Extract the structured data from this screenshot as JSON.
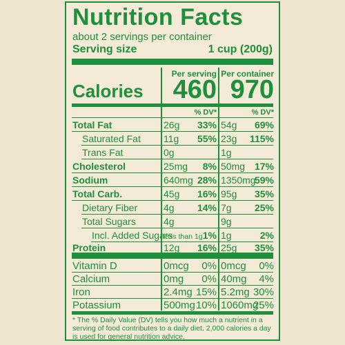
{
  "title": "Nutrition Facts",
  "servings_per_container": "about 2 servings per container",
  "serving_size_label": "Serving size",
  "serving_size_value": "1 cup (200g)",
  "col_per_serving": "Per serving",
  "col_per_container": "Per container",
  "calories_label": "Calories",
  "calories_serving": "460",
  "calories_container": "970",
  "dv_header": "% DV*",
  "nutrients": [
    {
      "name": "Total Fat",
      "s_amt": "26g",
      "s_dv": "33%",
      "c_amt": "54g",
      "c_dv": "69%"
    },
    {
      "name": "Saturated Fat",
      "s_amt": "11g",
      "s_dv": "55%",
      "c_amt": "23g",
      "c_dv": "115%"
    },
    {
      "name": "Trans Fat",
      "s_amt": "0g",
      "s_dv": "",
      "c_amt": "1g",
      "c_dv": ""
    },
    {
      "name": "Cholesterol",
      "s_amt": "25mg",
      "s_dv": "8%",
      "c_amt": "50mg",
      "c_dv": "17%"
    },
    {
      "name": "Sodium",
      "s_amt": "640mg",
      "s_dv": "28%",
      "c_amt": "1350mg",
      "c_dv": "59%"
    },
    {
      "name": "Total Carb.",
      "s_amt": "45g",
      "s_dv": "16%",
      "c_amt": "95g",
      "c_dv": "35%"
    },
    {
      "name": "Dietary Fiber",
      "s_amt": "4g",
      "s_dv": "14%",
      "c_amt": "7g",
      "c_dv": "25%"
    },
    {
      "name": "Total Sugars",
      "s_amt": "4g",
      "s_dv": "",
      "c_amt": "9g",
      "c_dv": ""
    },
    {
      "name": "Incl. Added Sugars",
      "s_amt": "less than 1g",
      "s_dv": "1%",
      "c_amt": "1g",
      "c_dv": "2%"
    },
    {
      "name": "Protein",
      "s_amt": "12g",
      "s_dv": "16%",
      "c_amt": "25g",
      "c_dv": "35%"
    }
  ],
  "vitamins": [
    {
      "name": "Vitamin D",
      "s_amt": "0mcg",
      "s_dv": "0%",
      "c_amt": "0mcg",
      "c_dv": "0%"
    },
    {
      "name": "Calcium",
      "s_amt": "0mg",
      "s_dv": "0%",
      "c_amt": "40mg",
      "c_dv": "4%"
    },
    {
      "name": "Iron",
      "s_amt": "2.4mg",
      "s_dv": "15%",
      "c_amt": "5.2mg",
      "c_dv": "30%"
    },
    {
      "name": "Potassium",
      "s_amt": "500mg",
      "s_dv": "10%",
      "c_amt": "1060mg",
      "c_dv": "25%"
    }
  ],
  "footnote": "* The % Daily Value (DV) tells you how much a nutrient in a serving of food contributes to a daily diet. 2,000 calories a day is used for general nutrition advice.",
  "colors": {
    "green": "#1e8f3a",
    "background": "#efe6d2"
  }
}
